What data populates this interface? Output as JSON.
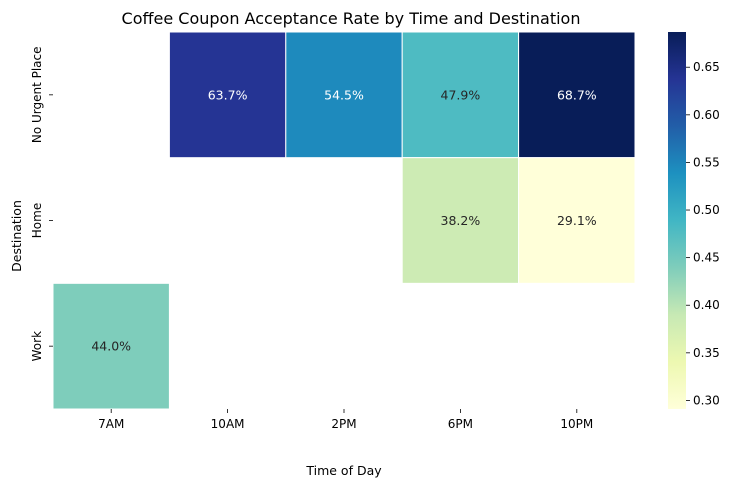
{
  "chart_data": {
    "type": "heatmap",
    "title": "Coffee Coupon Acceptance Rate by Time and Destination",
    "xlabel": "Time of Day",
    "ylabel": "Destination",
    "x_categories": [
      "7AM",
      "10AM",
      "2PM",
      "6PM",
      "10PM"
    ],
    "y_categories": [
      "No Urgent Place",
      "Home",
      "Work"
    ],
    "values": [
      [
        null,
        0.637,
        0.545,
        0.479,
        0.687
      ],
      [
        null,
        null,
        null,
        0.382,
        0.291
      ],
      [
        0.44,
        null,
        null,
        null,
        null
      ]
    ],
    "value_labels": [
      [
        null,
        "63.7%",
        "54.5%",
        "47.9%",
        "68.7%"
      ],
      [
        null,
        null,
        null,
        "38.2%",
        "29.1%"
      ],
      [
        "44.0%",
        null,
        null,
        null,
        null
      ]
    ],
    "colormap": "YlGnBu",
    "colorbar": {
      "range": [
        0.291,
        0.687
      ],
      "ticks": [
        "0.30",
        "0.35",
        "0.40",
        "0.45",
        "0.50",
        "0.55",
        "0.60",
        "0.65"
      ]
    }
  }
}
